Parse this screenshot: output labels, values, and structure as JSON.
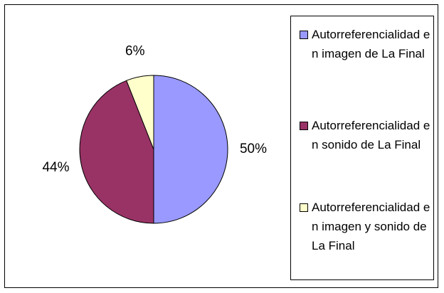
{
  "chart_data": {
    "type": "pie",
    "categories": [
      "Autorreferencialidad en imagen de La Final",
      "Autorreferencialidad en sonido de La Final",
      "Autorreferencialidad en imagen y sonido de La Final"
    ],
    "values": [
      50,
      44,
      6
    ],
    "value_labels": [
      "50%",
      "44%",
      "6%"
    ],
    "colors": [
      "#9999ff",
      "#993366",
      "#ffffcc"
    ],
    "legend": "right"
  }
}
